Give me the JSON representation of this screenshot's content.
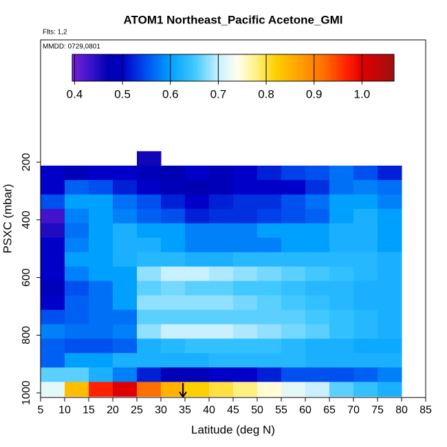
{
  "chart_data": {
    "type": "heatmap",
    "title": "ATOM1 Northeast_Pacific Acetone_GMI",
    "subtitle": "Flts: 1,2",
    "annotation": "MMDD: 0729,0801",
    "x_label": "Latitude (deg N)",
    "y_label": "PSXC (mbar)",
    "xlim": [
      5,
      85
    ],
    "xticks": [
      5,
      10,
      15,
      20,
      25,
      30,
      35,
      40,
      45,
      50,
      55,
      60,
      65,
      70,
      75,
      80,
      85
    ],
    "ylim": [
      1016,
      -224
    ],
    "yticks": [
      200,
      400,
      600,
      800,
      1000
    ],
    "xbins": [
      5,
      10,
      15,
      20,
      25,
      30,
      35,
      40,
      45,
      50,
      55,
      60,
      65,
      70,
      75,
      80
    ],
    "ybins": [
      162,
      212,
      262,
      312,
      362,
      412,
      462,
      512,
      562,
      612,
      662,
      712,
      762,
      812,
      862,
      912,
      962,
      1012
    ],
    "values": [
      [
        null,
        null,
        null,
        null,
        0.46,
        null,
        null,
        null,
        null,
        null,
        null,
        null,
        null,
        null,
        null
      ],
      [
        0.5,
        0.48,
        0.5,
        0.5,
        0.48,
        0.47,
        0.5,
        0.48,
        0.5,
        0.52,
        0.54,
        0.55,
        0.57,
        0.55,
        0.52
      ],
      [
        0.5,
        0.56,
        0.55,
        0.52,
        0.5,
        0.48,
        0.47,
        0.48,
        0.5,
        0.5,
        0.5,
        0.53,
        0.57,
        0.58,
        0.57
      ],
      [
        0.55,
        0.6,
        0.6,
        0.57,
        0.55,
        0.52,
        0.5,
        0.52,
        0.53,
        0.53,
        0.55,
        0.57,
        0.6,
        0.6,
        0.58
      ],
      [
        0.43,
        0.58,
        0.6,
        0.58,
        0.56,
        0.55,
        0.52,
        0.53,
        0.53,
        0.54,
        0.55,
        0.56,
        0.6,
        0.62,
        0.6
      ],
      [
        0.45,
        0.57,
        0.6,
        0.62,
        0.6,
        0.6,
        0.58,
        0.58,
        0.58,
        0.6,
        0.6,
        0.6,
        0.62,
        0.62,
        0.6
      ],
      [
        0.5,
        0.58,
        0.6,
        0.62,
        0.62,
        0.6,
        0.58,
        0.58,
        0.58,
        0.58,
        0.6,
        0.6,
        0.62,
        0.62,
        0.6
      ],
      [
        0.5,
        0.6,
        0.6,
        0.62,
        0.63,
        0.63,
        0.62,
        0.62,
        0.63,
        0.63,
        0.63,
        0.63,
        0.63,
        0.63,
        0.62
      ],
      [
        0.5,
        0.58,
        0.6,
        0.6,
        0.68,
        0.7,
        0.7,
        0.69,
        0.68,
        0.67,
        0.66,
        0.65,
        0.64,
        0.63,
        0.62
      ],
      [
        0.48,
        0.55,
        0.57,
        0.6,
        0.66,
        0.67,
        0.66,
        0.66,
        0.65,
        0.65,
        0.64,
        0.63,
        0.63,
        0.62,
        0.62
      ],
      [
        0.5,
        0.56,
        0.57,
        0.6,
        0.68,
        0.68,
        0.68,
        0.68,
        0.67,
        0.66,
        0.65,
        0.64,
        0.63,
        0.62,
        0.62
      ],
      [
        0.55,
        0.56,
        0.57,
        0.57,
        0.66,
        0.66,
        0.66,
        0.66,
        0.66,
        0.66,
        0.66,
        0.65,
        0.64,
        0.63,
        0.62
      ],
      [
        0.58,
        0.57,
        0.57,
        0.58,
        0.68,
        0.7,
        0.7,
        0.7,
        0.69,
        0.68,
        0.67,
        0.66,
        0.64,
        0.63,
        0.62
      ],
      [
        0.56,
        0.55,
        0.55,
        0.56,
        0.62,
        0.63,
        0.64,
        0.64,
        0.64,
        0.64,
        0.63,
        0.62,
        0.62,
        0.61,
        0.61
      ],
      [
        0.56,
        0.6,
        0.6,
        0.62,
        0.62,
        0.62,
        0.62,
        0.63,
        0.63,
        0.63,
        0.63,
        0.62,
        0.62,
        0.62,
        0.62
      ],
      [
        0.66,
        0.66,
        0.62,
        0.58,
        0.52,
        0.48,
        0.48,
        0.5,
        0.5,
        0.52,
        0.55,
        0.55,
        0.55,
        0.56,
        0.58
      ],
      [
        0.72,
        0.84,
        0.97,
        1.0,
        0.92,
        0.85,
        0.82,
        0.8,
        0.78,
        0.75,
        0.72,
        0.7,
        0.66,
        0.64,
        0.62
      ]
    ],
    "colorbar_lim": [
      0.395,
      1.067
    ],
    "colorbar_ticks": [
      0.4,
      0.5,
      0.6,
      0.7,
      0.8,
      0.9,
      {
        "value": 1,
        "label": "1.0"
      }
    ],
    "colorscale": [
      [
        0.395,
        "#7b1fd8"
      ],
      [
        0.44,
        "#3010c8"
      ],
      [
        0.47,
        "#0000b0"
      ],
      [
        0.5,
        "#0000c8"
      ],
      [
        0.55,
        "#0050f0"
      ],
      [
        0.6,
        "#00a0ff"
      ],
      [
        0.65,
        "#40c8ff"
      ],
      [
        0.7,
        "#c8f0ff"
      ],
      [
        0.74,
        "#fffff0"
      ],
      [
        0.78,
        "#fff080"
      ],
      [
        0.82,
        "#ffd000"
      ],
      [
        0.87,
        "#ffa000"
      ],
      [
        0.92,
        "#ff7000"
      ],
      [
        0.97,
        "#ff2000"
      ],
      [
        1.0,
        "#e00000"
      ],
      [
        1.067,
        "#a01010"
      ]
    ]
  }
}
